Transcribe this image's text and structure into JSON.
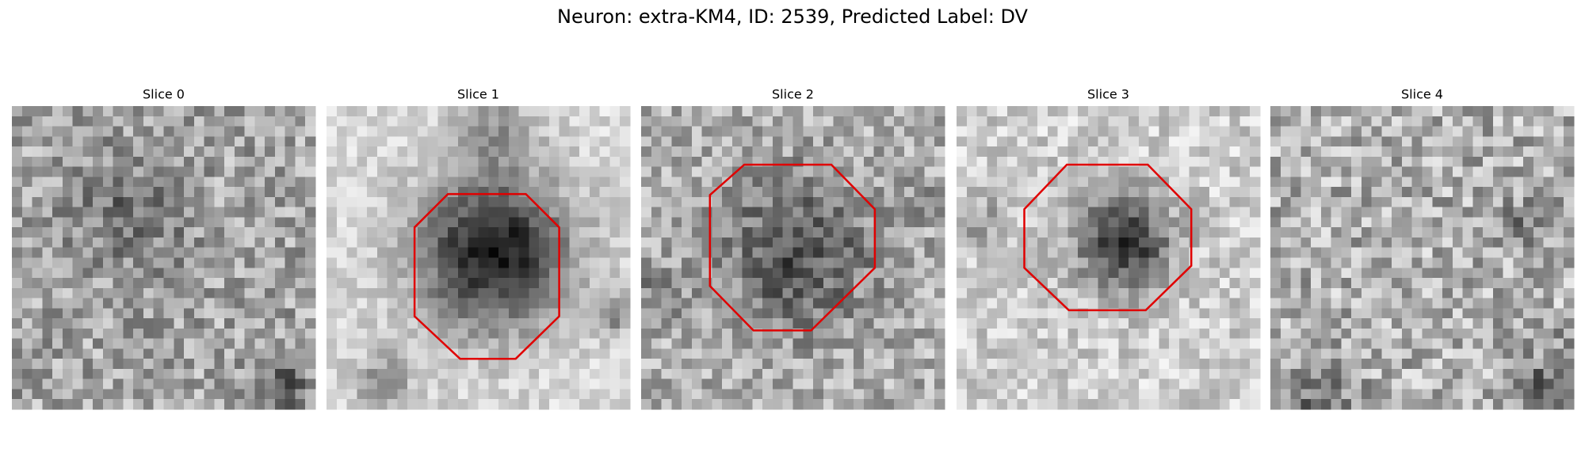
{
  "title": "Neuron: extra-KM4, ID: 2539, Predicted Label: DV",
  "panels": [
    {
      "label": "Slice 0"
    },
    {
      "label": "Slice 1"
    },
    {
      "label": "Slice 2"
    },
    {
      "label": "Slice 3"
    },
    {
      "label": "Slice 4"
    }
  ]
}
